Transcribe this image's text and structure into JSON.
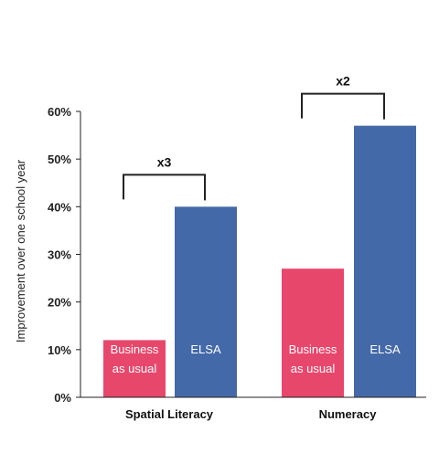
{
  "chart_data": {
    "type": "bar",
    "title": "",
    "xlabel": "",
    "ylabel": "Improvement over one school year",
    "ylim": [
      0,
      60
    ],
    "yticks": [
      "0%",
      "10%",
      "20%",
      "30%",
      "40%",
      "50%",
      "60%"
    ],
    "categories": [
      "Spatial Literacy",
      "Numeracy"
    ],
    "series": [
      {
        "name": "Business as usual",
        "label_lines": [
          "Business",
          "as usual"
        ],
        "color": "#e8476c",
        "values": [
          12,
          27
        ]
      },
      {
        "name": "ELSA",
        "label_lines": [
          "ELSA"
        ],
        "color": "#4469a8",
        "values": [
          40,
          57
        ]
      }
    ],
    "annotations": [
      "x3",
      "x2"
    ],
    "grid": false,
    "legend": "none"
  }
}
